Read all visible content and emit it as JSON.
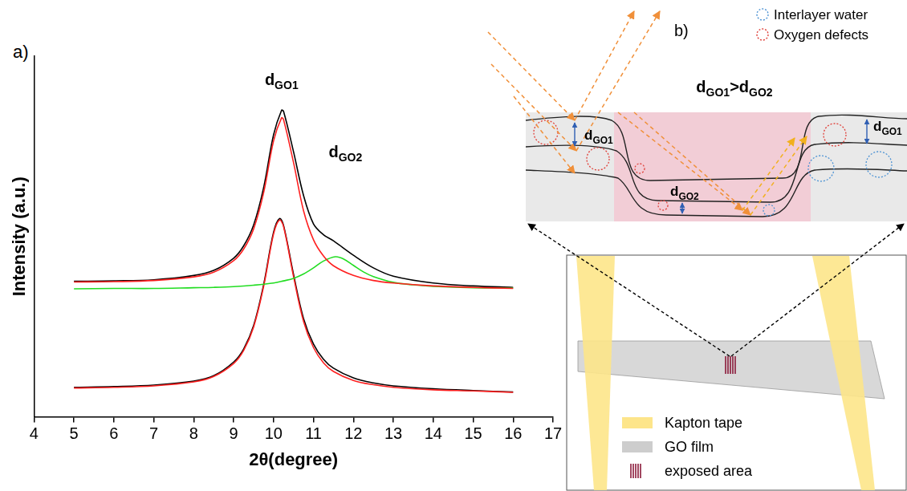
{
  "panel_labels": [
    "a)",
    "b)"
  ],
  "chart_data": {
    "type": "line",
    "xlabel": "2θ(degree)",
    "ylabel": "Intensity (a.u.)",
    "xlim": [
      4,
      17
    ],
    "xticks": [
      4,
      5,
      6,
      7,
      8,
      9,
      10,
      11,
      12,
      13,
      14,
      15,
      16,
      17
    ],
    "ylim": [
      0,
      100
    ],
    "tick_labels": "x",
    "grid": false,
    "series": [
      {
        "color": "#ff2020",
        "x": [
          5,
          6,
          7,
          8,
          8.5,
          9,
          9.25,
          9.5,
          9.75,
          10,
          10.2,
          10.25,
          10.5,
          10.75,
          11,
          11.25,
          11.5,
          12,
          12.5,
          13,
          14,
          15,
          16
        ],
        "values": [
          37.4,
          37.5,
          37.8,
          38.8,
          40.1,
          43.3,
          46.5,
          52.1,
          62.1,
          76.5,
          82.9,
          82.4,
          70.5,
          57.2,
          49.1,
          44.6,
          41.9,
          39.2,
          37.8,
          37.1,
          36.3,
          35.9,
          35.6
        ]
      },
      {
        "color": "#22dd22",
        "x": [
          5,
          6,
          7,
          8,
          8.5,
          9,
          9.5,
          10,
          10.25,
          10.5,
          10.75,
          11,
          11.25,
          11.55,
          11.75,
          12,
          12.25,
          12.5,
          13,
          13.5,
          14,
          15,
          16
        ],
        "values": [
          35.5,
          35.6,
          35.6,
          35.8,
          35.9,
          36.1,
          36.5,
          37.1,
          37.7,
          38.4,
          39.6,
          41.3,
          43.2,
          44.4,
          43.8,
          42.0,
          40.2,
          38.9,
          37.3,
          36.6,
          36.2,
          35.8,
          35.7
        ]
      },
      {
        "color": "#000000",
        "x": [
          5,
          6,
          7,
          8,
          8.5,
          9,
          9.25,
          9.5,
          9.75,
          10,
          10.2,
          10.25,
          10.5,
          10.75,
          11,
          11.25,
          11.5,
          12,
          12.5,
          13,
          14,
          15,
          16
        ],
        "values": [
          37.6,
          37.7,
          38.0,
          39.2,
          40.6,
          44.0,
          47.4,
          53.2,
          63.5,
          78.2,
          85.0,
          84.7,
          73.5,
          61.4,
          53.5,
          50.5,
          48.8,
          44.8,
          41.3,
          39.0,
          37.1,
          36.3,
          35.9
        ]
      },
      {
        "color": "#ff2020",
        "x": [
          5,
          6,
          7,
          8,
          8.5,
          9,
          9.25,
          9.5,
          9.75,
          10,
          10.15,
          10.25,
          10.5,
          10.75,
          11,
          11.25,
          11.5,
          12,
          12.5,
          13,
          14,
          15,
          16
        ],
        "values": [
          8.0,
          8.2,
          8.6,
          9.7,
          11.2,
          14.8,
          18.4,
          24.9,
          36.1,
          50.7,
          54.6,
          52.8,
          38.9,
          26.5,
          19.2,
          15.0,
          12.6,
          10.1,
          8.9,
          8.2,
          7.5,
          7.2,
          6.8
        ]
      },
      {
        "color": "#000000",
        "x": [
          5,
          6,
          7,
          8,
          8.5,
          9,
          9.25,
          9.5,
          9.75,
          10,
          10.15,
          10.25,
          10.5,
          10.75,
          11,
          11.25,
          11.5,
          12,
          12.5,
          13,
          14,
          15,
          16
        ],
        "values": [
          8.2,
          8.4,
          8.8,
          9.9,
          11.4,
          15.2,
          18.8,
          25.3,
          36.6,
          51.2,
          55.0,
          53.1,
          39.5,
          27.3,
          20.2,
          16.0,
          13.5,
          10.8,
          9.4,
          8.6,
          7.8,
          7.3,
          6.9
        ]
      }
    ],
    "annotations": [
      {
        "text": "d",
        "sub": "GO1",
        "x": 10.2,
        "y": 92
      },
      {
        "text": "d",
        "sub": "GO2",
        "x": 11.8,
        "y": 72
      }
    ]
  },
  "diagram": {
    "key": [
      {
        "text": "Interlayer water",
        "color": "#4f94d4"
      },
      {
        "text": "Oxygen defects",
        "color": "#e0413a"
      }
    ],
    "relation": [
      {
        "text": "d",
        "sub": "GO1"
      },
      {
        "text": ">d",
        "sub": "GO2"
      }
    ],
    "spacing_labels": [
      {
        "text": "d",
        "sub": "GO1"
      },
      {
        "text": "d",
        "sub": "GO1"
      },
      {
        "text": "d",
        "sub": "GO2"
      }
    ],
    "legend": [
      {
        "text": "Kapton tape",
        "color": "#fde58a"
      },
      {
        "text": "GO film",
        "color": "#b8b8b8"
      },
      {
        "text": "exposed area",
        "color": "#8b1a3a"
      }
    ]
  }
}
